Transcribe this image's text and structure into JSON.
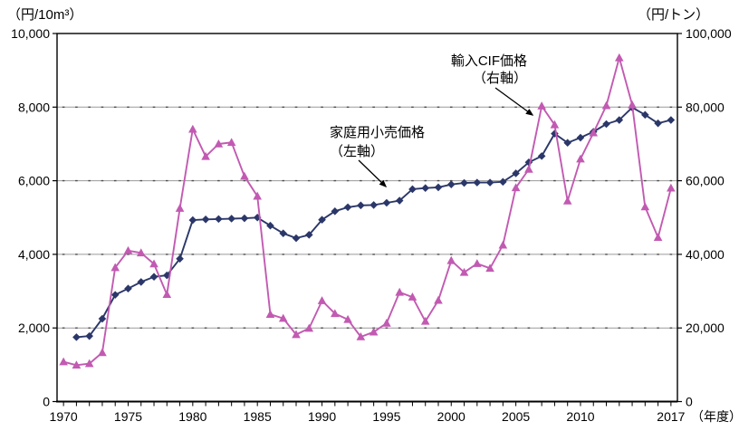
{
  "axes": {
    "left_unit": "（円/10m³）",
    "right_unit": "（円/トン）",
    "x_unit": "（年度）",
    "left_ticks": [
      "0",
      "2,000",
      "4,000",
      "6,000",
      "8,000",
      "10,000"
    ],
    "right_ticks": [
      "0",
      "20,000",
      "40,000",
      "60,000",
      "80,000",
      "100,000"
    ],
    "x_tick_labels": [
      "1970",
      "1975",
      "1980",
      "1985",
      "1990",
      "1995",
      "2000",
      "2005",
      "2010",
      "2017"
    ]
  },
  "annotations": {
    "import_cif": {
      "line1": "輸入CIF価格",
      "line2": "（右軸）"
    },
    "retail": {
      "line1": "家庭用小売価格",
      "line2": "（左軸）"
    }
  },
  "colors": {
    "retail_series": "#2b3769",
    "import_series": "#c25ab2",
    "gridline": "#9a9a9a",
    "gridline_dash": "#4d4d4d",
    "axis": "#000000"
  },
  "chart_data": {
    "type": "line",
    "x_label": "年度",
    "x": [
      1970,
      1971,
      1972,
      1973,
      1974,
      1975,
      1976,
      1977,
      1978,
      1979,
      1980,
      1981,
      1982,
      1983,
      1984,
      1985,
      1986,
      1987,
      1988,
      1989,
      1990,
      1991,
      1992,
      1993,
      1994,
      1995,
      1996,
      1997,
      1998,
      1999,
      2000,
      2001,
      2002,
      2003,
      2004,
      2005,
      2006,
      2007,
      2008,
      2009,
      2010,
      2011,
      2012,
      2013,
      2014,
      2015,
      2016,
      2017
    ],
    "left_axis": {
      "title": "円/10m³",
      "min": 0,
      "max": 10000,
      "step": 2000
    },
    "right_axis": {
      "title": "円/トン",
      "min": 0,
      "max": 100000,
      "step": 20000
    },
    "grid": true,
    "legend": "none (in-plot arrow annotations)",
    "series": [
      {
        "name": "家庭用小売価格（左軸）",
        "axis": "left",
        "unit": "円/10m³",
        "color": "#2b3769",
        "marker": "diamond",
        "values": [
          null,
          1750,
          1780,
          2250,
          2900,
          3070,
          3250,
          3390,
          3430,
          3880,
          4930,
          4950,
          4960,
          4970,
          4980,
          5000,
          4780,
          4570,
          4440,
          4530,
          4940,
          5170,
          5280,
          5330,
          5340,
          5400,
          5460,
          5770,
          5800,
          5820,
          5900,
          5940,
          5950,
          5950,
          5970,
          6200,
          6500,
          6670,
          7280,
          7030,
          7170,
          7330,
          7540,
          7650,
          7990,
          7790,
          7560,
          7650
        ]
      },
      {
        "name": "輸入CIF価格（右軸）",
        "axis": "right",
        "unit": "円/トン",
        "color": "#c25ab2",
        "marker": "triangle",
        "values": [
          10800,
          9900,
          10300,
          13300,
          36400,
          41000,
          40400,
          37400,
          29100,
          52500,
          74000,
          66600,
          70000,
          70400,
          61200,
          55800,
          23700,
          22600,
          18200,
          19900,
          27400,
          23900,
          22300,
          17600,
          18900,
          21300,
          29700,
          28400,
          21800,
          27500,
          38300,
          35100,
          37500,
          36200,
          42500,
          58100,
          63100,
          80300,
          75200,
          54500,
          65900,
          73000,
          80400,
          93400,
          80600,
          52900,
          44600,
          58000
        ]
      }
    ]
  }
}
